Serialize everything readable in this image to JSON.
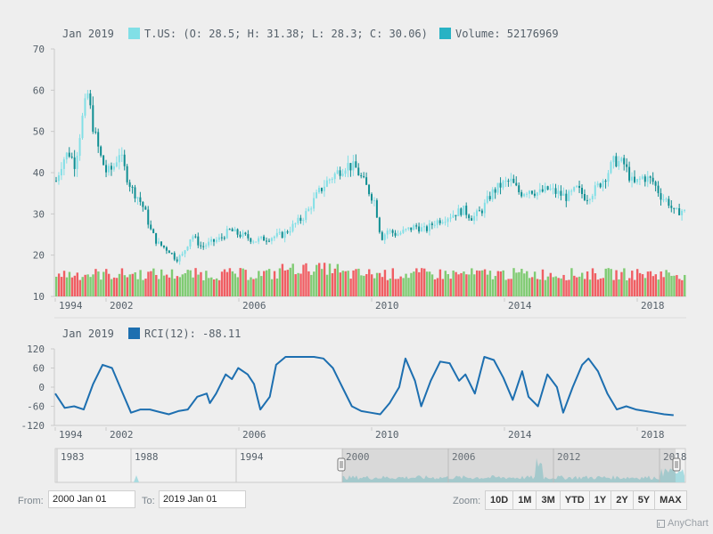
{
  "colors": {
    "rising": "#81dfe6",
    "falling": "#0f8f93",
    "volume_up": "#7fcb72",
    "volume_down": "#f05e63",
    "rci_line": "#1d6fb0",
    "nav_fill": "#a8dbe0",
    "axis_text": "#545f69"
  },
  "price_legend": {
    "date": "Jan 2019",
    "ohlc_text": "T.US: (O: 28.5; H: 31.38; L: 28.3; C: 30.06)",
    "volume_text": "Volume: 52176969"
  },
  "rci_legend": {
    "date": "Jan 2019",
    "text": "RCI(12): -88.11"
  },
  "controls": {
    "from_label": "From:",
    "from_value": "2000 Jan 01",
    "to_label": "To:",
    "to_value": "2019 Jan 01",
    "zoom_label": "Zoom:",
    "zoom_buttons": [
      "10D",
      "1M",
      "3M",
      "YTD",
      "1Y",
      "2Y",
      "5Y",
      "MAX"
    ]
  },
  "credits": "AnyChart",
  "chart_data": {
    "type": "line",
    "price_plot": {
      "y_ticks": [
        70,
        60,
        50,
        40,
        30,
        20,
        10
      ],
      "ylim": [
        10,
        70
      ],
      "x_ticks": [
        "1994",
        "2002",
        "2006",
        "2010",
        "2014",
        "2018"
      ],
      "close_series": {
        "name": "T.US",
        "points": [
          [
            2000.0,
            38
          ],
          [
            2000.2,
            43
          ],
          [
            2000.4,
            45
          ],
          [
            2000.6,
            42
          ],
          [
            2000.8,
            52
          ],
          [
            2001.0,
            59
          ],
          [
            2001.2,
            50
          ],
          [
            2001.4,
            44
          ],
          [
            2001.6,
            40
          ],
          [
            2001.8,
            41
          ],
          [
            2002.0,
            45
          ],
          [
            2002.2,
            40
          ],
          [
            2002.4,
            36
          ],
          [
            2002.6,
            34
          ],
          [
            2002.8,
            31
          ],
          [
            2003.0,
            26
          ],
          [
            2003.2,
            23
          ],
          [
            2003.4,
            22
          ],
          [
            2003.6,
            21
          ],
          [
            2003.8,
            19
          ],
          [
            2004.0,
            20
          ],
          [
            2004.3,
            25
          ],
          [
            2004.6,
            22
          ],
          [
            2004.9,
            23
          ],
          [
            2005.2,
            24
          ],
          [
            2005.5,
            26
          ],
          [
            2005.8,
            25
          ],
          [
            2006.0,
            24.5
          ],
          [
            2006.3,
            23.5
          ],
          [
            2006.6,
            24
          ],
          [
            2006.9,
            24.5
          ],
          [
            2007.2,
            25
          ],
          [
            2007.5,
            27
          ],
          [
            2007.8,
            29
          ],
          [
            2008.0,
            31
          ],
          [
            2008.3,
            35
          ],
          [
            2008.6,
            38
          ],
          [
            2008.9,
            40
          ],
          [
            2009.2,
            42
          ],
          [
            2009.5,
            41
          ],
          [
            2009.8,
            37
          ],
          [
            2010.1,
            33
          ],
          [
            2010.3,
            24
          ],
          [
            2010.5,
            26
          ],
          [
            2010.8,
            25
          ],
          [
            2011.1,
            26
          ],
          [
            2011.4,
            27
          ],
          [
            2011.7,
            26
          ],
          [
            2012.0,
            28
          ],
          [
            2012.3,
            29
          ],
          [
            2012.6,
            30
          ],
          [
            2012.9,
            31
          ],
          [
            2013.2,
            29
          ],
          [
            2013.5,
            31
          ],
          [
            2013.8,
            35
          ],
          [
            2014.1,
            37
          ],
          [
            2014.4,
            38
          ],
          [
            2014.7,
            35
          ],
          [
            2015.0,
            36
          ],
          [
            2015.3,
            35
          ],
          [
            2015.6,
            36
          ],
          [
            2015.9,
            35
          ],
          [
            2016.2,
            34
          ],
          [
            2016.5,
            36
          ],
          [
            2016.8,
            34
          ],
          [
            2017.1,
            36
          ],
          [
            2017.4,
            39
          ],
          [
            2017.7,
            43
          ],
          [
            2018.0,
            42
          ],
          [
            2018.3,
            37
          ],
          [
            2018.6,
            39
          ],
          [
            2018.9,
            38
          ],
          [
            2019.2,
            34
          ],
          [
            2019.4,
            33
          ],
          [
            2019.6,
            30
          ],
          [
            2019.8,
            31
          ],
          [
            2020.0,
            30
          ]
        ]
      },
      "volume_series": {
        "name": "Volume",
        "scale": "secondary"
      }
    },
    "rci_plot": {
      "y_ticks": [
        120,
        60,
        0,
        -60,
        -120
      ],
      "ylim": [
        -120,
        120
      ],
      "x_ticks": [
        "1994",
        "2002",
        "2006",
        "2010",
        "2014",
        "2018"
      ],
      "series": {
        "name": "RCI(12)",
        "points": [
          [
            2000.0,
            -20
          ],
          [
            2000.3,
            -65
          ],
          [
            2000.6,
            -60
          ],
          [
            2000.9,
            -70
          ],
          [
            2001.2,
            10
          ],
          [
            2001.5,
            70
          ],
          [
            2001.8,
            60
          ],
          [
            2002.1,
            -10
          ],
          [
            2002.4,
            -80
          ],
          [
            2002.7,
            -70
          ],
          [
            2003.0,
            -70
          ],
          [
            2003.3,
            -78
          ],
          [
            2003.6,
            -85
          ],
          [
            2003.9,
            -75
          ],
          [
            2004.2,
            -70
          ],
          [
            2004.5,
            -30
          ],
          [
            2004.8,
            -20
          ],
          [
            2004.9,
            -50
          ],
          [
            2005.1,
            -20
          ],
          [
            2005.4,
            40
          ],
          [
            2005.6,
            25
          ],
          [
            2005.8,
            60
          ],
          [
            2006.1,
            40
          ],
          [
            2006.3,
            10
          ],
          [
            2006.5,
            -70
          ],
          [
            2006.8,
            -30
          ],
          [
            2007.0,
            70
          ],
          [
            2007.3,
            95
          ],
          [
            2007.6,
            95
          ],
          [
            2007.9,
            95
          ],
          [
            2008.2,
            95
          ],
          [
            2008.5,
            90
          ],
          [
            2008.8,
            60
          ],
          [
            2009.1,
            0
          ],
          [
            2009.4,
            -60
          ],
          [
            2009.7,
            -75
          ],
          [
            2010.0,
            -80
          ],
          [
            2010.3,
            -85
          ],
          [
            2010.6,
            -50
          ],
          [
            2010.9,
            0
          ],
          [
            2011.1,
            90
          ],
          [
            2011.4,
            20
          ],
          [
            2011.6,
            -60
          ],
          [
            2011.9,
            20
          ],
          [
            2012.2,
            80
          ],
          [
            2012.5,
            75
          ],
          [
            2012.8,
            20
          ],
          [
            2013.0,
            40
          ],
          [
            2013.3,
            -20
          ],
          [
            2013.6,
            95
          ],
          [
            2013.9,
            85
          ],
          [
            2014.2,
            30
          ],
          [
            2014.5,
            -40
          ],
          [
            2014.8,
            50
          ],
          [
            2015.0,
            -30
          ],
          [
            2015.3,
            -60
          ],
          [
            2015.6,
            40
          ],
          [
            2015.9,
            0
          ],
          [
            2016.1,
            -80
          ],
          [
            2016.4,
            0
          ],
          [
            2016.7,
            70
          ],
          [
            2016.9,
            90
          ],
          [
            2017.2,
            50
          ],
          [
            2017.5,
            -20
          ],
          [
            2017.8,
            -70
          ],
          [
            2018.1,
            -60
          ],
          [
            2018.4,
            -70
          ],
          [
            2018.7,
            -75
          ],
          [
            2019.0,
            -80
          ],
          [
            2019.3,
            -85
          ],
          [
            2019.6,
            -88
          ]
        ]
      }
    },
    "navigator": {
      "labels": [
        "1983",
        "1988",
        "1994",
        "2000",
        "2006",
        "2012",
        "2018"
      ],
      "selection": [
        "2000 Jan 01",
        "2019 Jan 01"
      ]
    }
  }
}
